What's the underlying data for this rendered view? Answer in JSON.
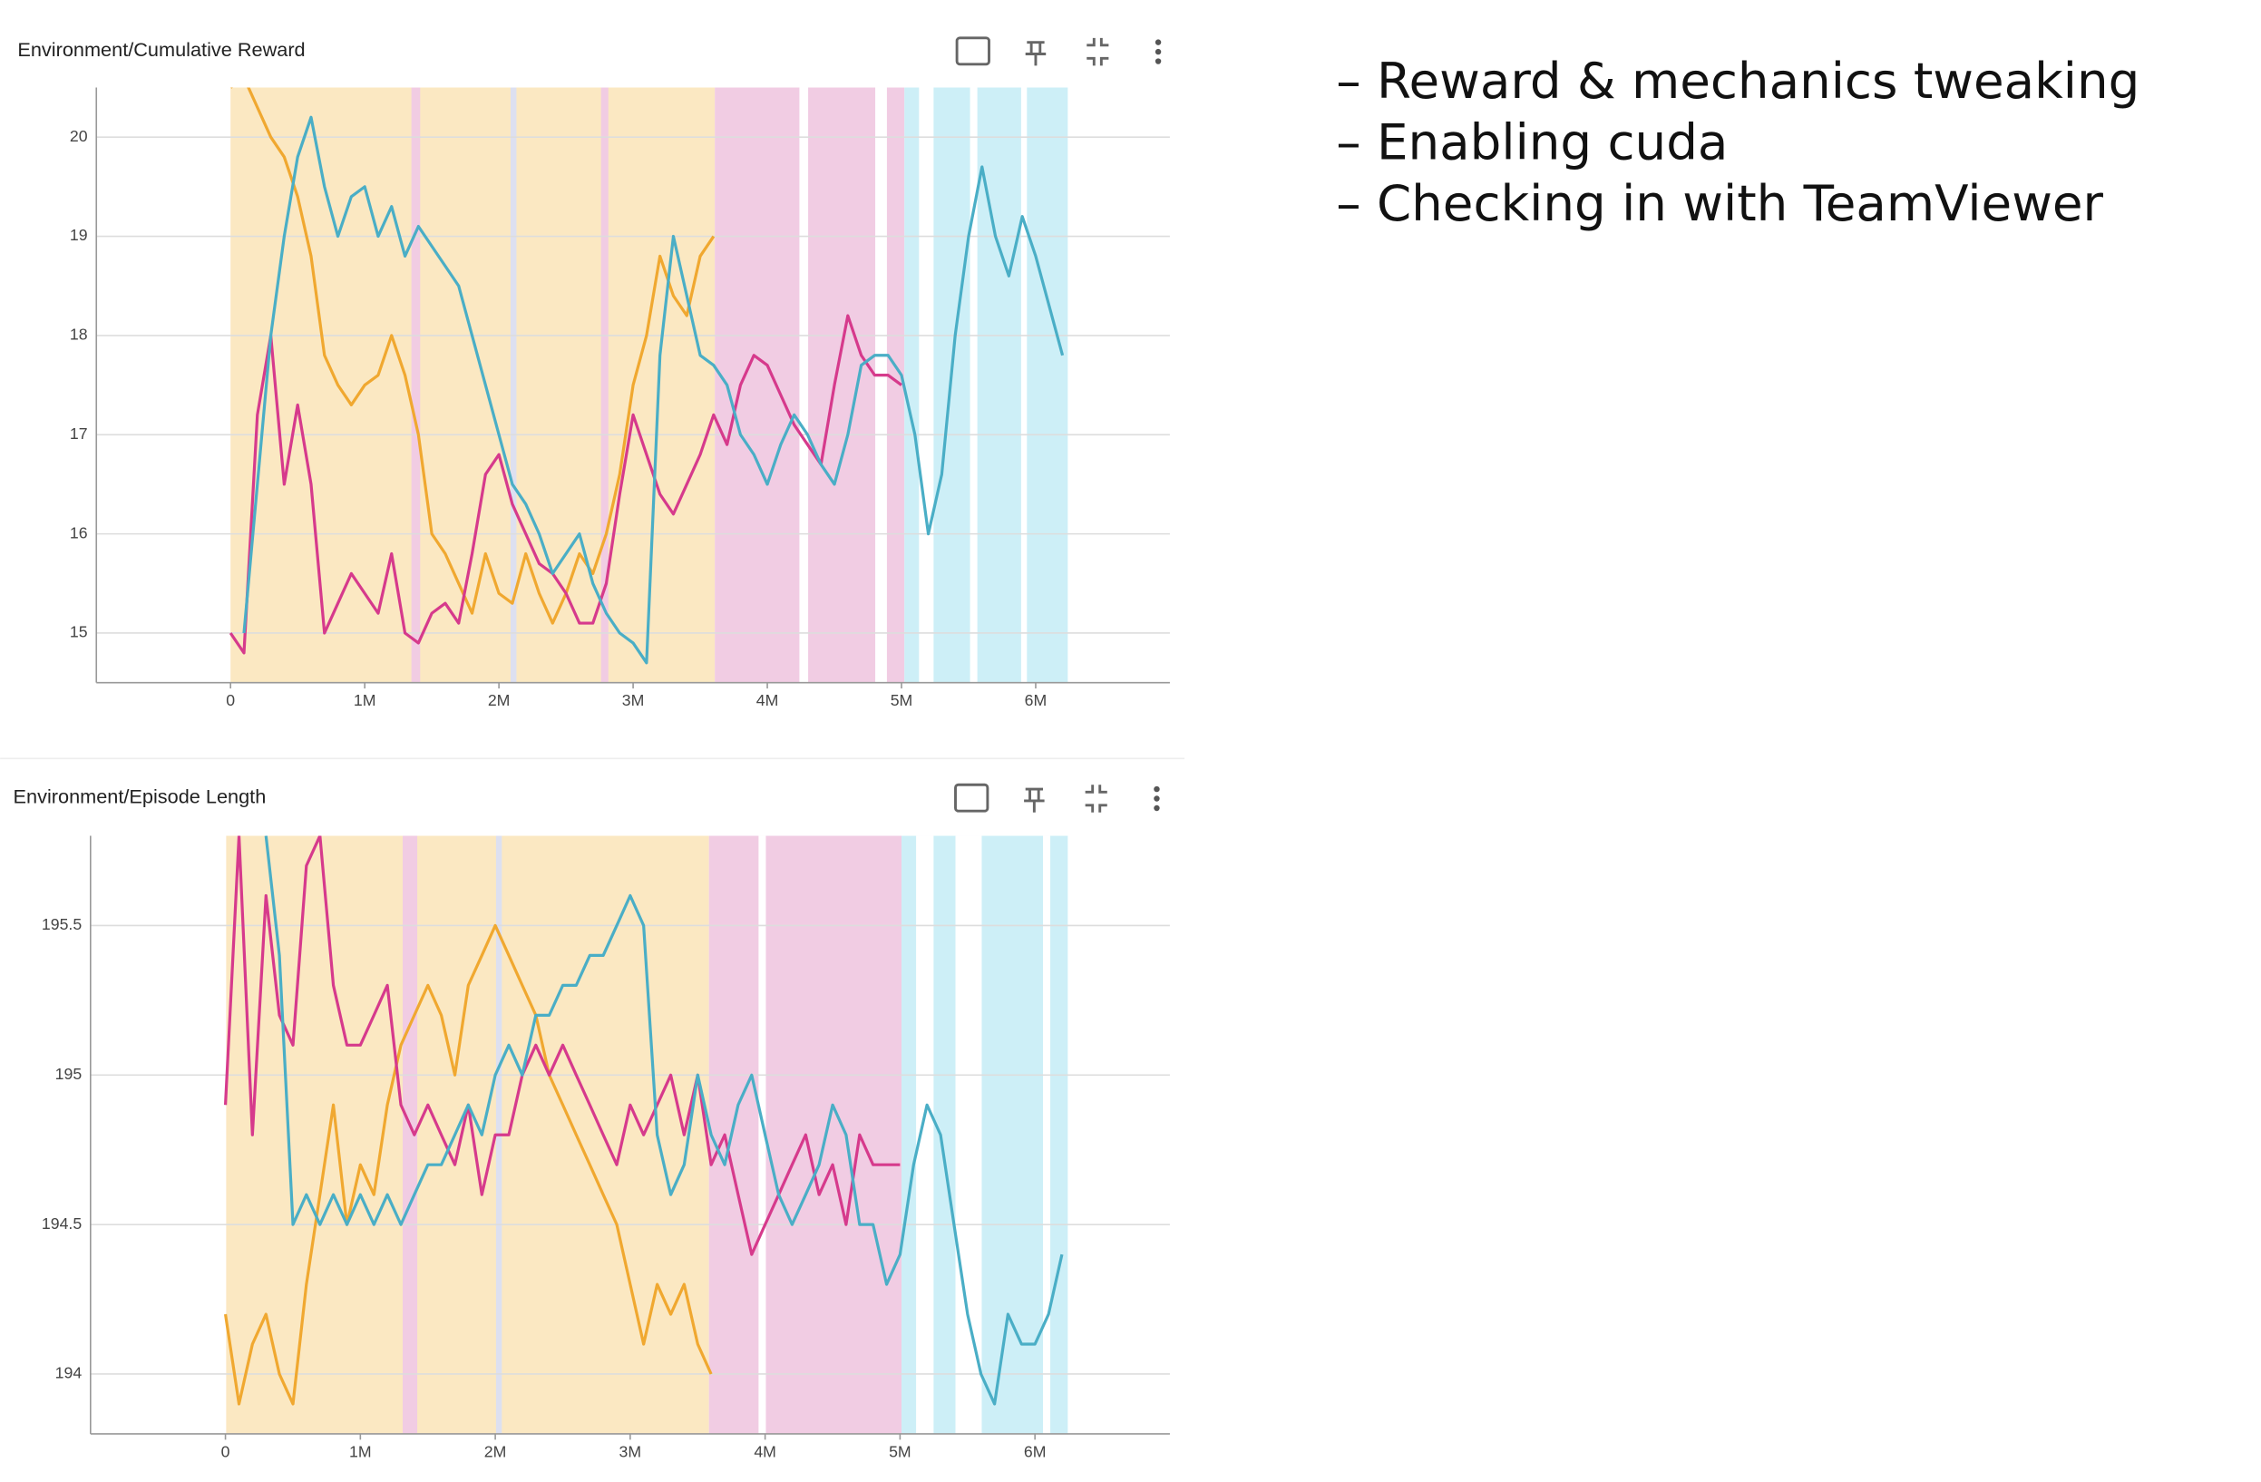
{
  "chart_data": [
    {
      "type": "line",
      "title": "Environment/Cumulative Reward",
      "x": [
        0,
        100000,
        200000,
        300000,
        400000,
        500000,
        600000,
        700000,
        800000,
        900000,
        1000000,
        1100000,
        1200000,
        1300000,
        1400000,
        1500000,
        1600000,
        1700000,
        1800000,
        1900000,
        2000000,
        2100000,
        2200000,
        2300000,
        2400000,
        2500000,
        2600000,
        2700000,
        2800000,
        2900000,
        3000000,
        3100000,
        3200000,
        3300000,
        3400000,
        3500000,
        3600000,
        3700000,
        3800000,
        3900000,
        4000000,
        4100000,
        4200000,
        4300000,
        4400000,
        4500000,
        4600000,
        4700000,
        4800000,
        4900000,
        5000000,
        5100000,
        5200000,
        5300000,
        5400000,
        5500000,
        5600000,
        5700000,
        5800000,
        5900000,
        6000000,
        6100000,
        6200000
      ],
      "xlim": [
        -1000000,
        7000000
      ],
      "xticks": [
        0,
        {
          "value": 1000000,
          "label": "1M"
        },
        {
          "value": 2000000,
          "label": "2M"
        },
        {
          "value": 3000000,
          "label": "3M"
        },
        {
          "value": 4000000,
          "label": "4M"
        },
        {
          "value": 5000000,
          "label": "5M"
        },
        {
          "value": 6000000,
          "label": "6M"
        }
      ],
      "ylim": [
        14.5,
        20.5
      ],
      "yticks": [
        15,
        16,
        17,
        18,
        19,
        20
      ],
      "grid": true,
      "series": [
        {
          "color": "#f0a830",
          "values": [
            20.5,
            20.6,
            20.3,
            20.0,
            19.8,
            19.4,
            18.8,
            17.8,
            17.5,
            17.3,
            17.5,
            17.6,
            18.0,
            17.6,
            17.0,
            16.0,
            15.8,
            15.5,
            15.2,
            15.8,
            15.4,
            15.3,
            15.8,
            15.4,
            15.1,
            15.4,
            15.8,
            15.6,
            16.0,
            16.6,
            17.5,
            18.0,
            18.8,
            18.4,
            18.2,
            18.8,
            19.0,
            null,
            null,
            null,
            null,
            null,
            null,
            null,
            null,
            null,
            null,
            null,
            null,
            null,
            null,
            null,
            null,
            null,
            null,
            null,
            null,
            null,
            null,
            null,
            null,
            null,
            null
          ]
        },
        {
          "color": "#d63a8c",
          "values": [
            15.0,
            14.8,
            17.2,
            18.0,
            16.5,
            17.3,
            16.5,
            15.0,
            15.3,
            15.6,
            15.4,
            15.2,
            15.8,
            15.0,
            14.9,
            15.2,
            15.3,
            15.1,
            15.8,
            16.6,
            16.8,
            16.3,
            16.0,
            15.7,
            15.6,
            15.4,
            15.1,
            15.1,
            15.5,
            16.4,
            17.2,
            16.8,
            16.4,
            16.2,
            16.5,
            16.8,
            17.2,
            16.9,
            17.5,
            17.8,
            17.7,
            17.4,
            17.1,
            16.9,
            16.7,
            17.5,
            18.2,
            17.8,
            17.6,
            17.6,
            17.5,
            null,
            null,
            null,
            null,
            null,
            null,
            null,
            null,
            null,
            null,
            null,
            null
          ]
        },
        {
          "color": "#4aaec6",
          "values": [
            null,
            15.0,
            16.5,
            18.0,
            19.0,
            19.8,
            20.2,
            19.5,
            19.0,
            19.4,
            19.5,
            19.0,
            19.3,
            18.8,
            19.1,
            18.9,
            18.7,
            18.5,
            18.0,
            17.5,
            17.0,
            16.5,
            16.3,
            16.0,
            15.6,
            15.8,
            16.0,
            15.5,
            15.2,
            15.0,
            14.9,
            14.7,
            17.8,
            19.0,
            18.4,
            17.8,
            17.7,
            17.5,
            17.0,
            16.8,
            16.5,
            16.9,
            17.2,
            17.0,
            16.7,
            16.5,
            17.0,
            17.7,
            17.8,
            17.8,
            17.6,
            17.0,
            16.0,
            16.6,
            18.0,
            19.0,
            19.7,
            19.0,
            18.6,
            19.2,
            18.8,
            18.3,
            17.8
          ]
        }
      ]
    },
    {
      "type": "line",
      "title": "Environment/Episode Length",
      "x": [
        0,
        100000,
        200000,
        300000,
        400000,
        500000,
        600000,
        700000,
        800000,
        900000,
        1000000,
        1100000,
        1200000,
        1300000,
        1400000,
        1500000,
        1600000,
        1700000,
        1800000,
        1900000,
        2000000,
        2100000,
        2200000,
        2300000,
        2400000,
        2500000,
        2600000,
        2700000,
        2800000,
        2900000,
        3000000,
        3100000,
        3200000,
        3300000,
        3400000,
        3500000,
        3600000,
        3700000,
        3800000,
        3900000,
        4000000,
        4100000,
        4200000,
        4300000,
        4400000,
        4500000,
        4600000,
        4700000,
        4800000,
        4900000,
        5000000,
        5100000,
        5200000,
        5300000,
        5400000,
        5500000,
        5600000,
        5700000,
        5800000,
        5900000,
        6000000,
        6100000,
        6200000
      ],
      "xlim": [
        -1000000,
        7000000
      ],
      "xticks": [
        0,
        {
          "value": 1000000,
          "label": "1M"
        },
        {
          "value": 2000000,
          "label": "2M"
        },
        {
          "value": 3000000,
          "label": "3M"
        },
        {
          "value": 4000000,
          "label": "4M"
        },
        {
          "value": 5000000,
          "label": "5M"
        },
        {
          "value": 6000000,
          "label": "6M"
        }
      ],
      "ylim": [
        193.8,
        195.8
      ],
      "yticks": [
        194,
        194.5,
        195,
        195.5
      ],
      "grid": true,
      "series": [
        {
          "color": "#f0a830",
          "values": [
            194.2,
            193.9,
            194.1,
            194.2,
            194.0,
            193.9,
            194.3,
            194.6,
            194.9,
            194.5,
            194.7,
            194.6,
            194.9,
            195.1,
            195.2,
            195.3,
            195.2,
            195.0,
            195.3,
            195.4,
            195.5,
            195.4,
            195.3,
            195.2,
            195.0,
            194.9,
            194.8,
            194.7,
            194.6,
            194.5,
            194.3,
            194.1,
            194.3,
            194.2,
            194.3,
            194.1,
            194.0,
            null,
            null,
            null,
            null,
            null,
            null,
            null,
            null,
            null,
            null,
            null,
            null,
            null,
            null,
            null,
            null,
            null,
            null,
            null,
            null,
            null,
            null,
            null,
            null,
            null,
            null
          ]
        },
        {
          "color": "#d63a8c",
          "values": [
            194.9,
            195.8,
            194.8,
            195.6,
            195.2,
            195.1,
            195.7,
            195.8,
            195.3,
            195.1,
            195.1,
            195.2,
            195.3,
            194.9,
            194.8,
            194.9,
            194.8,
            194.7,
            194.9,
            194.6,
            194.8,
            194.8,
            195.0,
            195.1,
            195.0,
            195.1,
            195.0,
            194.9,
            194.8,
            194.7,
            194.9,
            194.8,
            194.9,
            195.0,
            194.8,
            195.0,
            194.7,
            194.8,
            194.6,
            194.4,
            194.5,
            194.6,
            194.7,
            194.8,
            194.6,
            194.7,
            194.5,
            194.8,
            194.7,
            194.7,
            194.7,
            null,
            null,
            null,
            null,
            null,
            null,
            null,
            null,
            null,
            null,
            null,
            null
          ]
        },
        {
          "color": "#4aaec6",
          "values": [
            null,
            null,
            null,
            195.8,
            195.4,
            194.5,
            194.6,
            194.5,
            194.6,
            194.5,
            194.6,
            194.5,
            194.6,
            194.5,
            194.6,
            194.7,
            194.7,
            194.8,
            194.9,
            194.8,
            195.0,
            195.1,
            195.0,
            195.2,
            195.2,
            195.3,
            195.3,
            195.4,
            195.4,
            195.5,
            195.6,
            195.5,
            194.8,
            194.6,
            194.7,
            195.0,
            194.8,
            194.7,
            194.9,
            195.0,
            194.8,
            194.6,
            194.5,
            194.6,
            194.7,
            194.9,
            194.8,
            194.5,
            194.5,
            194.3,
            194.4,
            194.7,
            194.9,
            194.8,
            194.5,
            194.2,
            194.0,
            193.9,
            194.2,
            194.1,
            194.1,
            194.2,
            194.4
          ]
        }
      ]
    }
  ],
  "notes": [
    "– Reward & mechanics tweaking",
    "– Enabling cuda",
    "– Checking in with TeamViewer"
  ]
}
